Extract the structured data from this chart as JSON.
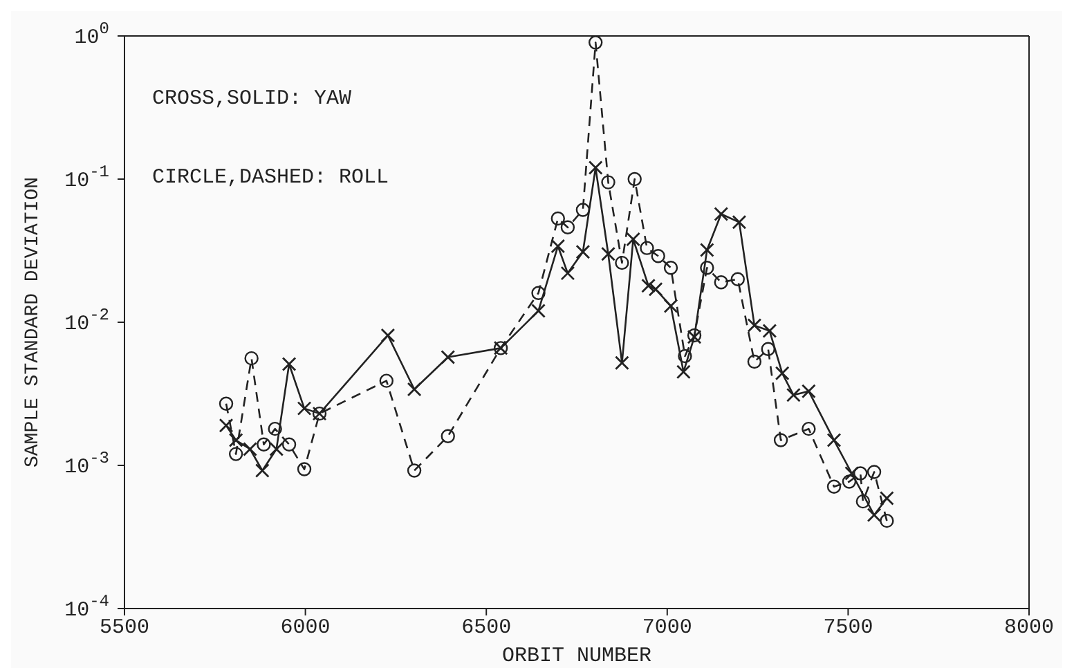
{
  "chart_data": {
    "type": "line",
    "xlabel": "ORBIT NUMBER",
    "ylabel": "SAMPLE STANDARD DEVIATION",
    "annotations": [
      "CROSS,SOLID: YAW",
      "CIRCLE,DASHED: ROLL"
    ],
    "log": "y",
    "grid": false,
    "legend": false,
    "xlim": [
      5500,
      8000
    ],
    "xticks": [
      5500,
      6000,
      6500,
      7000,
      7500,
      8000
    ],
    "ylim": [
      0.0001,
      1
    ],
    "yticks": [
      {
        "value": 0.0001,
        "label": "10$^{-4}$"
      },
      {
        "value": 0.001,
        "label": "10$^{-3}$"
      },
      {
        "value": 0.01,
        "label": "10$^{-2}$"
      },
      {
        "value": 0.1,
        "label": "10$^{-1}$"
      },
      {
        "value": 1,
        "label": "10$^{0}$"
      }
    ],
    "series": [
      {
        "color": "#222222",
        "marker": "cross",
        "line_style": "solid",
        "x": [
          5781,
          5808,
          5847,
          5881,
          5920,
          5955,
          5997,
          6039,
          6228,
          6301,
          6394,
          6540,
          6644,
          6698,
          6725,
          6767,
          6802,
          6837,
          6875,
          6906,
          6948,
          6968,
          7010,
          7045,
          7075,
          7110,
          7149,
          7199,
          7241,
          7283,
          7318,
          7349,
          7391,
          7461,
          7510,
          7572,
          7607
        ],
        "values": [
          0.0019,
          0.0015,
          0.0013,
          0.00092,
          0.0013,
          0.0051,
          0.0025,
          0.0023,
          0.0081,
          0.0034,
          0.0057,
          0.0066,
          0.012,
          0.034,
          0.022,
          0.031,
          0.12,
          0.03,
          0.0052,
          0.038,
          0.018,
          0.017,
          0.013,
          0.0045,
          0.0079,
          0.032,
          0.057,
          0.05,
          0.0095,
          0.0087,
          0.0044,
          0.0031,
          0.0033,
          0.0015,
          0.00088,
          0.00045,
          0.00059
        ]
      },
      {
        "color": "#222222",
        "marker": "circle",
        "line_style": "dashed",
        "x": [
          5781,
          5808,
          5851,
          5885,
          5916,
          5955,
          5997,
          6039,
          6224,
          6301,
          6394,
          6540,
          6644,
          6698,
          6725,
          6767,
          6802,
          6837,
          6875,
          6910,
          6944,
          6975,
          7010,
          7049,
          7075,
          7110,
          7149,
          7195,
          7241,
          7279,
          7314,
          7391,
          7461,
          7503,
          7534,
          7541,
          7572,
          7607
        ],
        "values": [
          0.0027,
          0.0012,
          0.0056,
          0.0014,
          0.0018,
          0.0014,
          0.00094,
          0.0023,
          0.0039,
          0.00092,
          0.0016,
          0.0066,
          0.016,
          0.053,
          0.046,
          0.061,
          0.9,
          0.095,
          0.026,
          0.1,
          0.033,
          0.029,
          0.024,
          0.0058,
          0.0081,
          0.024,
          0.019,
          0.02,
          0.0053,
          0.0065,
          0.0015,
          0.0018,
          0.00071,
          0.00077,
          0.00088,
          0.00056,
          0.0009,
          0.00041
        ]
      }
    ]
  }
}
